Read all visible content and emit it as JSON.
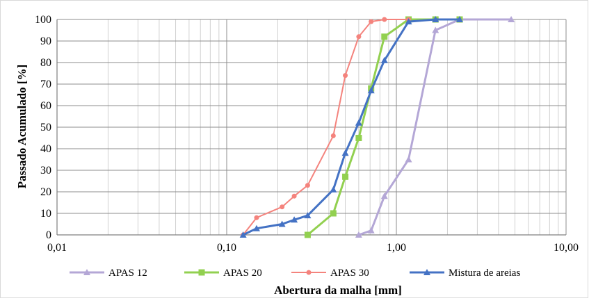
{
  "chart_data": {
    "type": "line",
    "xlabel": "Abertura da malha [mm]",
    "ylabel": "Passado Acumulado [%]",
    "x_scale": "log",
    "xlim": [
      0.01,
      10
    ],
    "ylim": [
      0,
      100
    ],
    "grid": true,
    "legend_position": "bottom",
    "x_tick_labels": [
      "0,01",
      "0,10",
      "1,00",
      "10,00"
    ],
    "y_tick_labels": [
      "0",
      "10",
      "20",
      "30",
      "40",
      "50",
      "60",
      "70",
      "80",
      "90",
      "100"
    ],
    "series": [
      {
        "name": "APAS 12",
        "color": "#b4a7d6",
        "marker": "triangle",
        "points": [
          [
            0.6,
            0
          ],
          [
            0.71,
            2
          ],
          [
            0.85,
            18
          ],
          [
            1.18,
            35
          ],
          [
            1.7,
            95
          ],
          [
            2.36,
            100
          ],
          [
            4.75,
            100
          ]
        ]
      },
      {
        "name": "APAS 20",
        "color": "#92d050",
        "marker": "square",
        "points": [
          [
            0.3,
            0
          ],
          [
            0.425,
            10
          ],
          [
            0.5,
            27
          ],
          [
            0.6,
            45
          ],
          [
            0.71,
            68
          ],
          [
            0.85,
            92
          ],
          [
            1.18,
            100
          ],
          [
            1.7,
            100
          ],
          [
            2.36,
            100
          ]
        ]
      },
      {
        "name": "APAS 30",
        "color": "#f4837d",
        "marker": "circle",
        "points": [
          [
            0.125,
            0
          ],
          [
            0.15,
            8
          ],
          [
            0.212,
            13
          ],
          [
            0.25,
            18
          ],
          [
            0.3,
            23
          ],
          [
            0.425,
            46
          ],
          [
            0.5,
            74
          ],
          [
            0.6,
            92
          ],
          [
            0.71,
            99
          ],
          [
            0.85,
            100
          ],
          [
            1.18,
            100
          ]
        ]
      },
      {
        "name": "Mistura de areias",
        "color": "#4472c4",
        "marker": "triangle",
        "points": [
          [
            0.125,
            0
          ],
          [
            0.15,
            3
          ],
          [
            0.212,
            5
          ],
          [
            0.25,
            7
          ],
          [
            0.3,
            9
          ],
          [
            0.425,
            21
          ],
          [
            0.5,
            38
          ],
          [
            0.6,
            52
          ],
          [
            0.71,
            67
          ],
          [
            0.85,
            81
          ],
          [
            1.18,
            99
          ],
          [
            1.7,
            100
          ],
          [
            2.36,
            100
          ]
        ]
      }
    ]
  }
}
